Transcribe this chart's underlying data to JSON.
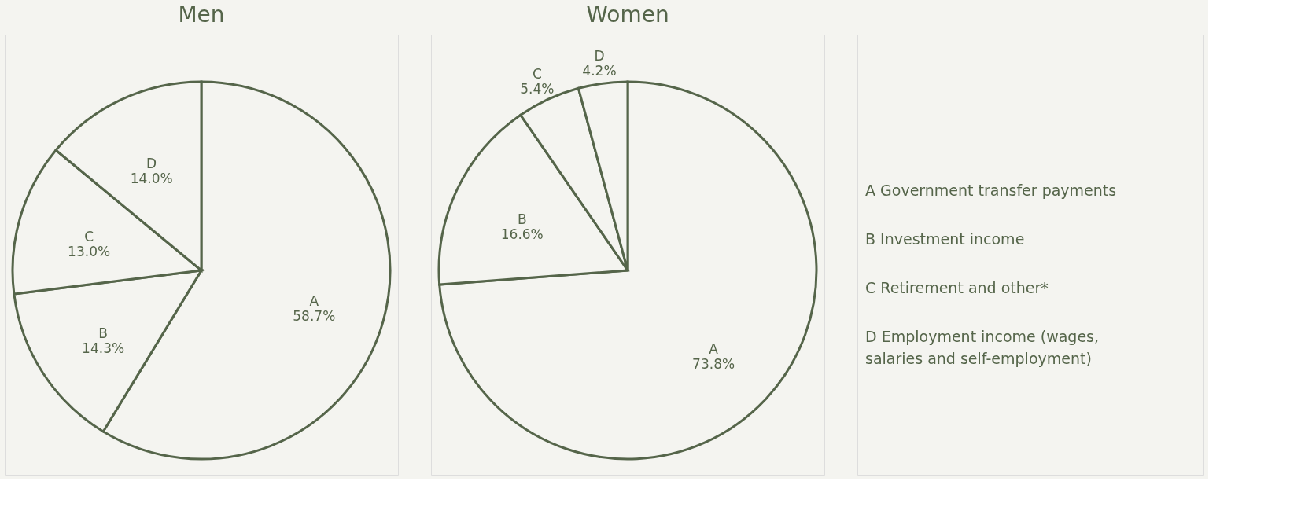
{
  "chart_data": [
    {
      "type": "pie",
      "title": "Men",
      "categories": [
        "A",
        "B",
        "C",
        "D"
      ],
      "values": [
        58.7,
        14.3,
        13.0,
        14.0
      ],
      "colors": [
        "#f4f4f0",
        "#f4f4f0",
        "#f4f4f0",
        "#f4f4f0"
      ],
      "value_labels": [
        "58.7%",
        "14.3%",
        "13.0%",
        "14.0%"
      ]
    },
    {
      "type": "pie",
      "title": "Women",
      "categories": [
        "A",
        "B",
        "C",
        "D"
      ],
      "values": [
        73.8,
        16.6,
        5.4,
        4.2
      ],
      "colors": [
        "#f4f4f0",
        "#f4f4f0",
        "#f4f4f0",
        "#f4f4f0"
      ],
      "value_labels": [
        "73.8%",
        "16.6%",
        "5.4%",
        "4.2%"
      ]
    },
    {
      "type": "other",
      "annotations": [
        "A  Government transfer payments",
        "B  Investment income",
        "C  Retirement and other*",
        "D  Employment income (wages, salaries and self-employment)"
      ]
    }
  ]
}
